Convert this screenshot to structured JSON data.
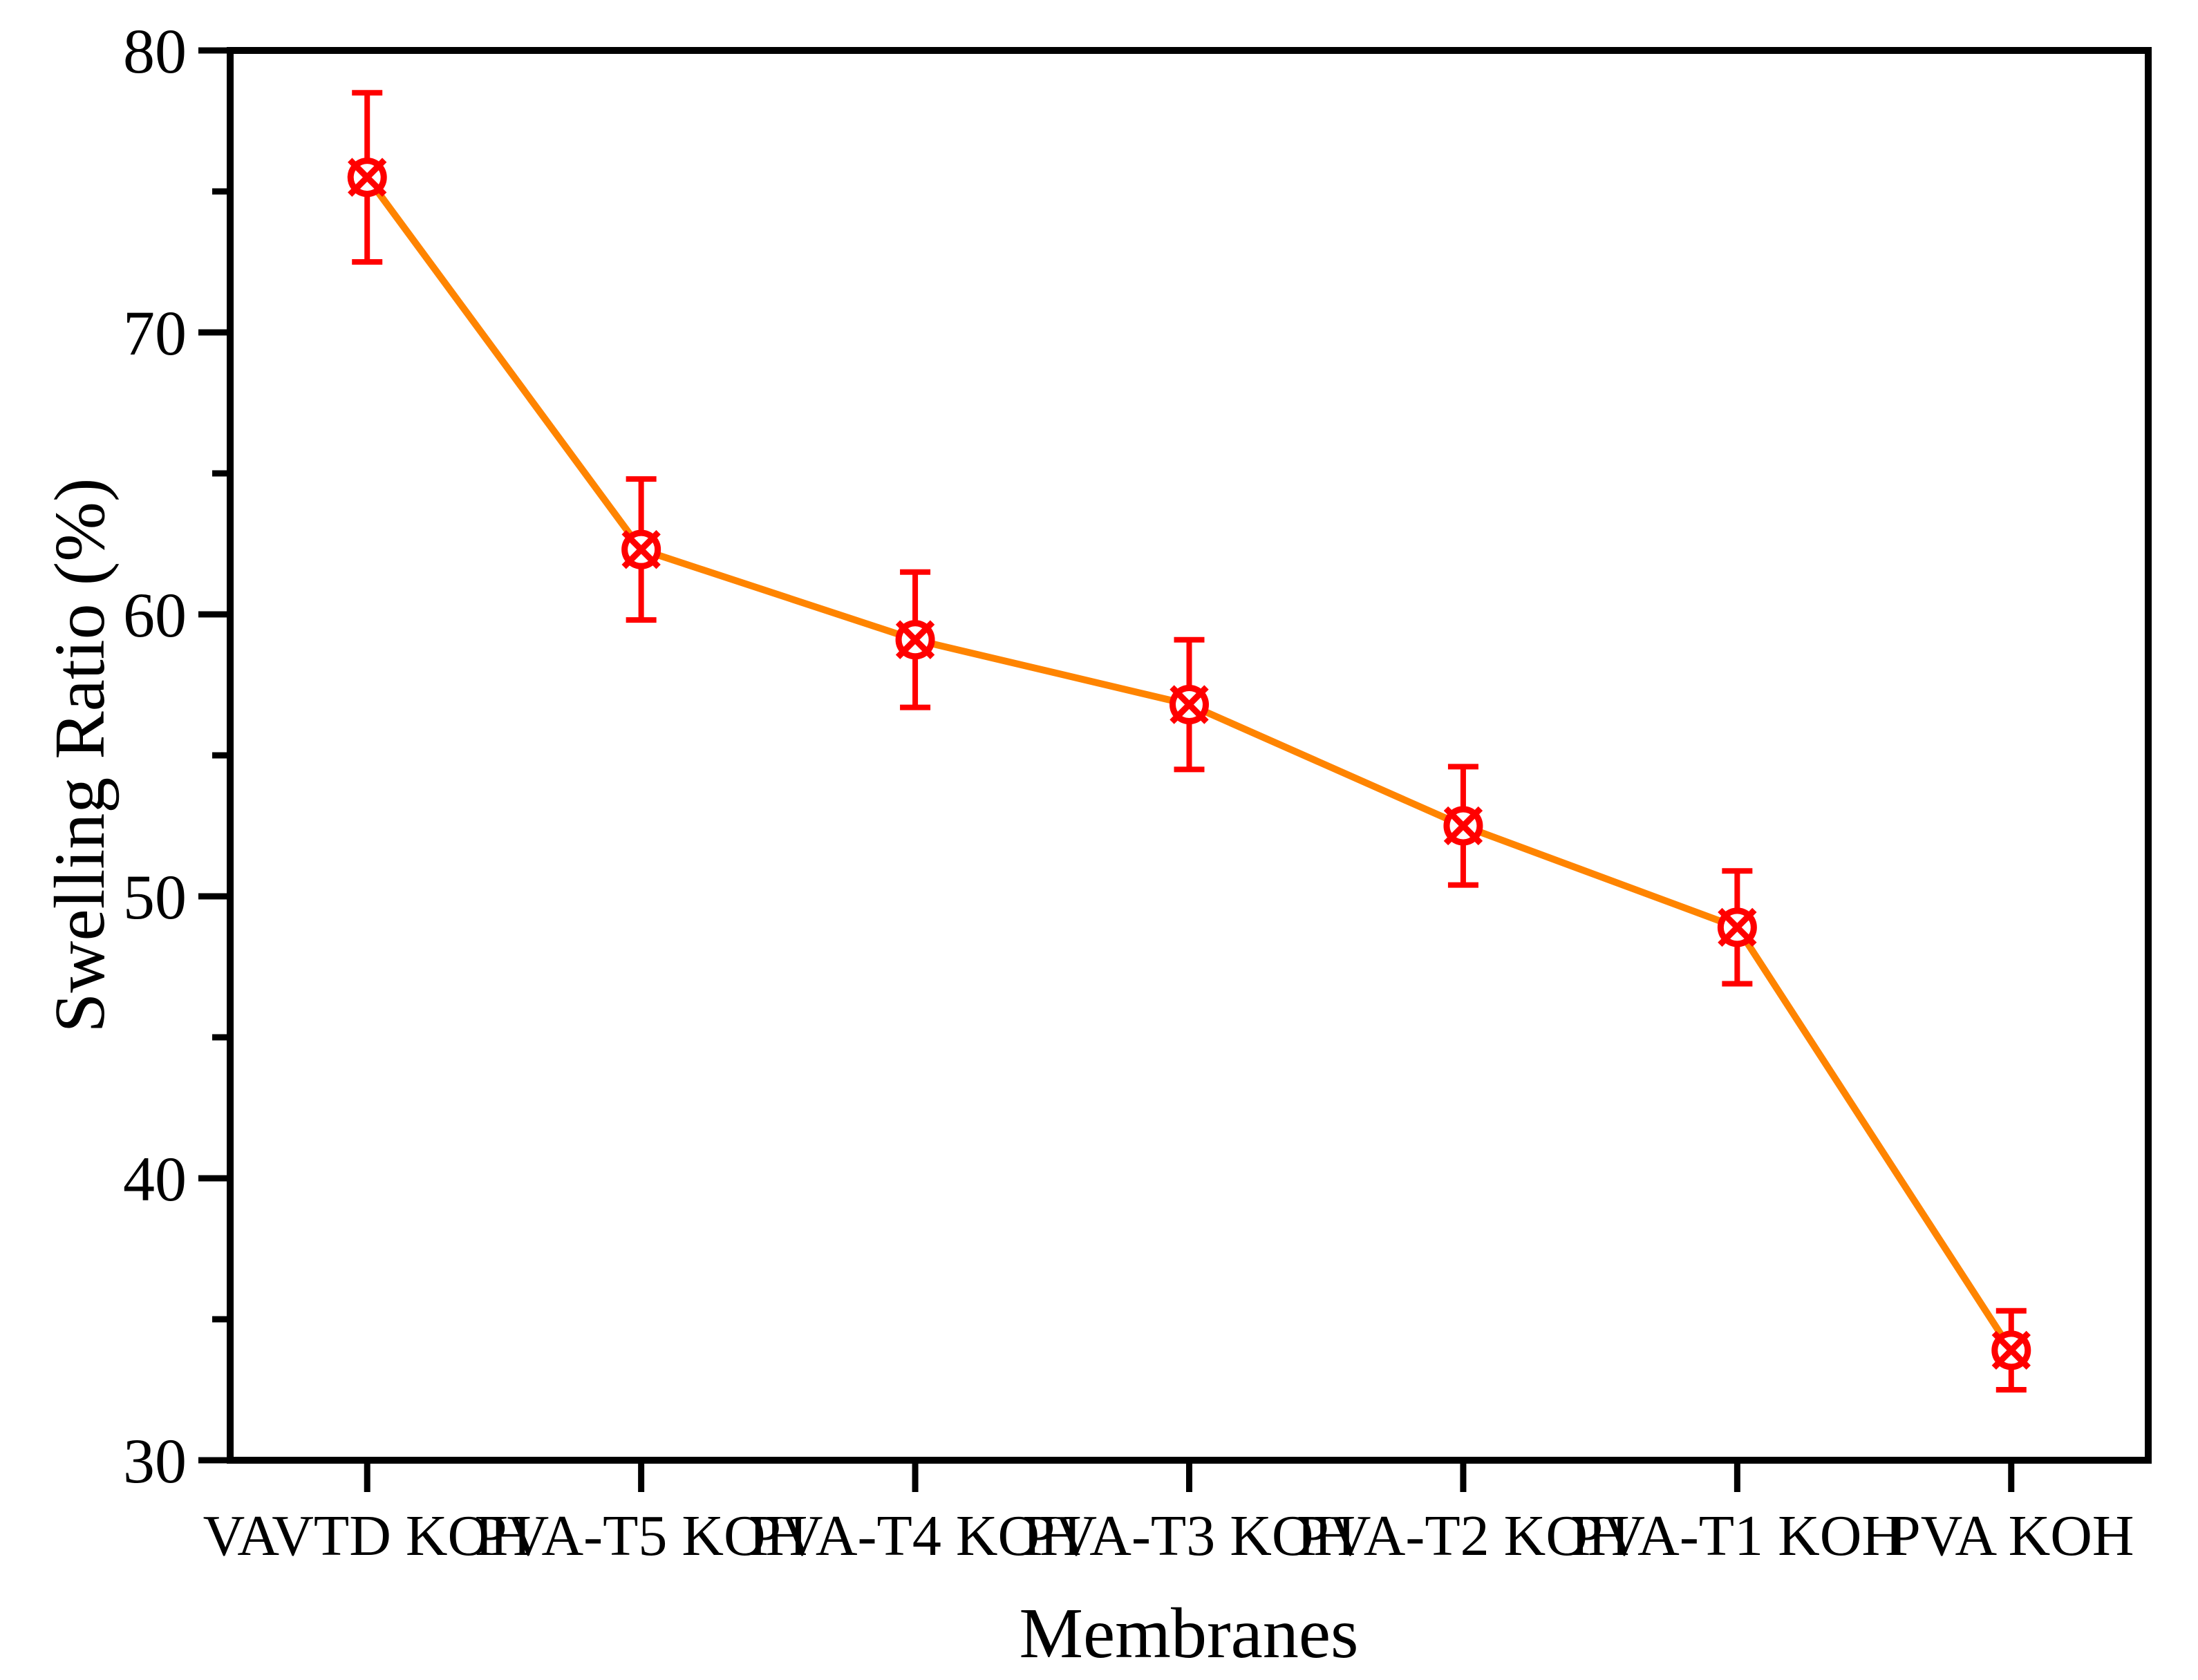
{
  "chart_data": {
    "type": "line",
    "title": "",
    "xlabel": "Membranes",
    "ylabel": "Swelling Ratio (%)",
    "categories": [
      "VAVTD KOH",
      "PVA-T5 KOH",
      "PVA-T4 KOH",
      "PVA-T3 KOH",
      "PVA-T2 KOH",
      "PVA-T1 KOH",
      "PVA KOH"
    ],
    "series": [
      {
        "name": "Swelling Ratio",
        "values": [
          75.5,
          62.3,
          59.1,
          56.8,
          52.5,
          48.9,
          33.9
        ],
        "errors": [
          3.0,
          2.5,
          2.4,
          2.3,
          2.1,
          2.0,
          1.4
        ]
      }
    ],
    "ylim": [
      30,
      80
    ],
    "yticks": [
      30,
      40,
      50,
      60,
      70,
      80
    ],
    "ytick_labels": [
      "30",
      "40",
      "50",
      "60",
      "70",
      "80"
    ],
    "ytick_minor_step": 5,
    "grid": false,
    "legend": null,
    "marker_style": "circle-x",
    "frame": "box",
    "colors": {
      "line": "#FF8400",
      "marker": "#FF0000",
      "error_bar": "#FF0000",
      "axis": "#000000",
      "background": "#FFFFFF"
    }
  }
}
